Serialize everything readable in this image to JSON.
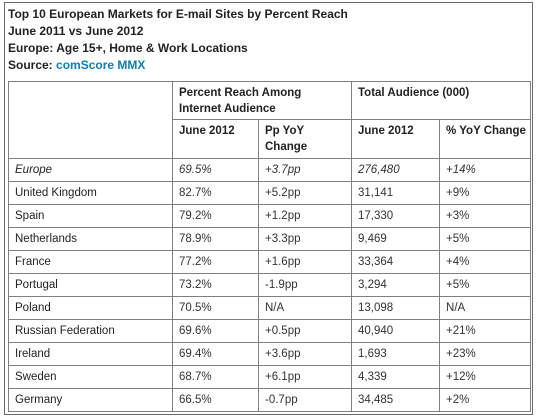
{
  "header": {
    "title": "Top 10 European Markets for E-mail Sites by Percent Reach",
    "period": "June 2011 vs June 2012",
    "scope": "Europe: Age 15+, Home & Work Locations",
    "source_label": "Source:",
    "source_name": "comScore MMX"
  },
  "table": {
    "group_headers": {
      "reach": "Percent Reach Among Internet Audience",
      "audience": "Total Audience (000)"
    },
    "sub_headers": {
      "reach_june": "June 2012",
      "reach_change": "Pp YoY Change",
      "aud_june": "June 2012",
      "aud_change": "% YoY Change"
    },
    "rows": [
      {
        "market": "Europe",
        "reach": "69.5%",
        "pp_change": "+3.7pp",
        "audience": "276,480",
        "pct_change": "+14%"
      },
      {
        "market": "United Kingdom",
        "reach": "82.7%",
        "pp_change": "+5.2pp",
        "audience": "31,141",
        "pct_change": "+9%"
      },
      {
        "market": "Spain",
        "reach": "79.2%",
        "pp_change": "+1.2pp",
        "audience": "17,330",
        "pct_change": "+3%"
      },
      {
        "market": "Netherlands",
        "reach": "78.9%",
        "pp_change": "+3.3pp",
        "audience": "9,469",
        "pct_change": "+5%"
      },
      {
        "market": "France",
        "reach": "77.2%",
        "pp_change": "+1.6pp",
        "audience": "33,364",
        "pct_change": "+4%"
      },
      {
        "market": "Portugal",
        "reach": "73.2%",
        "pp_change": "-1.9pp",
        "audience": "3,294",
        "pct_change": "+5%"
      },
      {
        "market": "Poland",
        "reach": "70.5%",
        "pp_change": "N/A",
        "audience": "13,098",
        "pct_change": "N/A"
      },
      {
        "market": "Russian Federation",
        "reach": "69.6%",
        "pp_change": "+0.5pp",
        "audience": "40,940",
        "pct_change": "+21%"
      },
      {
        "market": "Ireland",
        "reach": "69.4%",
        "pp_change": "+3.6pp",
        "audience": "1,693",
        "pct_change": "+23%"
      },
      {
        "market": "Sweden",
        "reach": "68.7%",
        "pp_change": "+6.1pp",
        "audience": "4,339",
        "pct_change": "+12%"
      },
      {
        "market": "Germany",
        "reach": "66.5%",
        "pp_change": "-0.7pp",
        "audience": "34,485",
        "pct_change": "+2%"
      }
    ]
  }
}
